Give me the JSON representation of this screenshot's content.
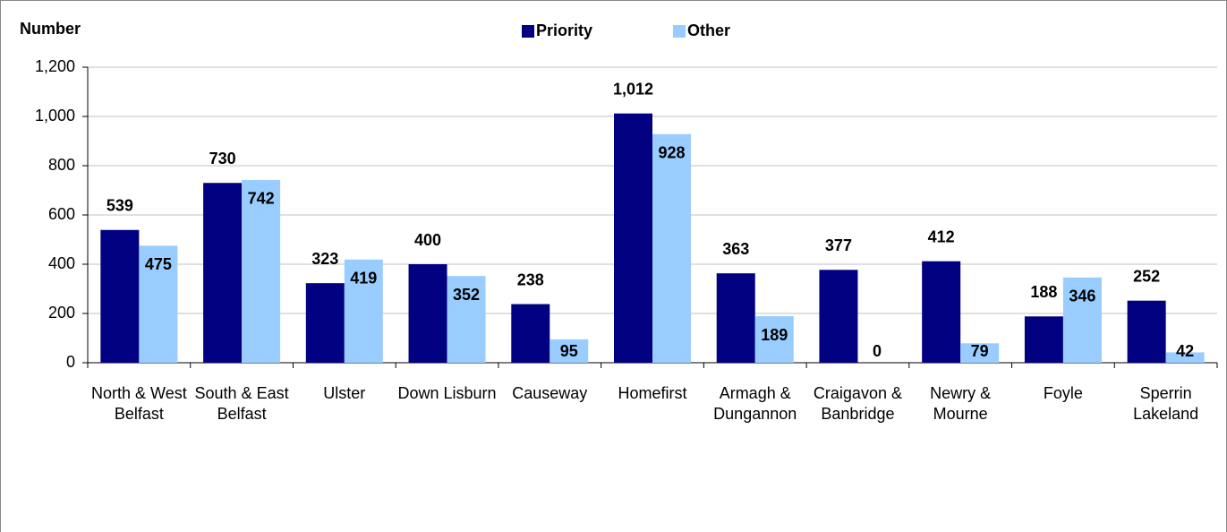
{
  "chart_data": {
    "type": "bar",
    "y_label": "Number",
    "categories": [
      "North & West Belfast",
      "South & East Belfast",
      "Ulster",
      "Down Lisburn",
      "Causeway",
      "Homefirst",
      "Armagh & Dungannon",
      "Craigavon & Banbridge",
      "Newry & Mourne",
      "Foyle",
      "Sperrin Lakeland"
    ],
    "series": [
      {
        "name": "Priority",
        "color": "#000080",
        "values": [
          539,
          730,
          323,
          400,
          238,
          1012,
          363,
          377,
          412,
          188,
          252
        ],
        "value_labels": [
          "539",
          "730",
          "323",
          "400",
          "238",
          "1,012",
          "363",
          "377",
          "412",
          "188",
          "252"
        ]
      },
      {
        "name": "Other",
        "color": "#99ccff",
        "values": [
          475,
          742,
          419,
          352,
          95,
          928,
          189,
          0,
          79,
          346,
          42
        ]
      }
    ],
    "ylim": [
      0,
      1200
    ],
    "yticks": [
      0,
      200,
      400,
      600,
      800,
      {
        "value": 1000,
        "label": "1,000"
      },
      {
        "value": 1200,
        "label": "1,200"
      }
    ],
    "grid": true
  }
}
